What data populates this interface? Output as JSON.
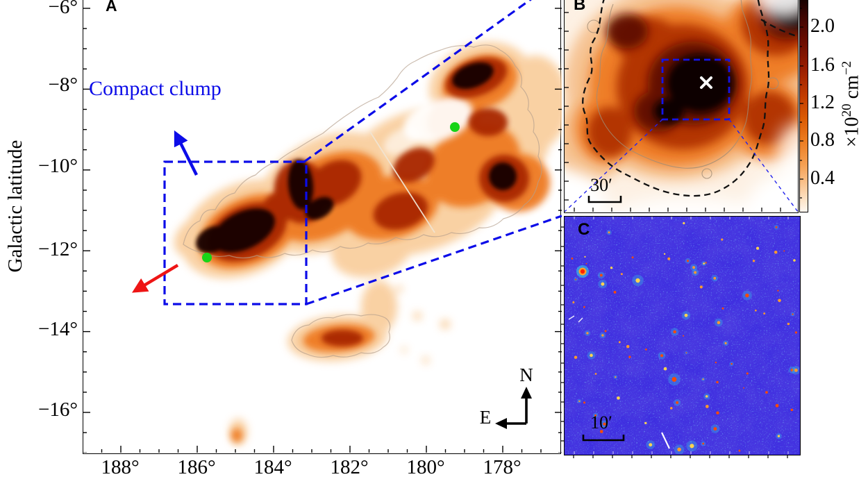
{
  "panel_a": {
    "label": "A",
    "y_axis_label": "Galactic latitude",
    "x_tick_labels": [
      "188°",
      "186°",
      "184°",
      "182°",
      "180°",
      "178°"
    ],
    "y_tick_labels": [
      "−6°",
      "−8°",
      "−10°",
      "−12°",
      "−14°",
      "−16°"
    ],
    "annotation_compact_clump": "Compact clump",
    "compass_north": "N",
    "compass_east": "E"
  },
  "panel_b": {
    "label": "B",
    "scalebar_label": "30′",
    "colorbar_tick_labels": [
      "2.0",
      "1.6",
      "1.2",
      "0.8",
      "0.4"
    ],
    "colorbar_unit_prefix": "×10",
    "colorbar_unit_exponent": "20",
    "colorbar_unit_base": " cm",
    "colorbar_unit_base_exponent": "−2"
  },
  "panel_c": {
    "label": "C",
    "scalebar_label": "10′"
  },
  "colors": {
    "annotation_blue": "#0c0ce8",
    "arrow_red": "#ee1515",
    "marker_green": "#17d417",
    "panel_c_background": "#3a2ae0",
    "colormap": "white → orange → dark red → black"
  },
  "chart_data": [
    {
      "panel": "A",
      "type": "heatmap",
      "description": "Wide-field column-density style map of an extended cloud complex (white-orange-black colour scale) with thin grey boundary contours",
      "ylabel": "Galactic latitude",
      "x_tick_labels": [
        "188°",
        "186°",
        "184°",
        "182°",
        "180°",
        "178°"
      ],
      "y_tick_labels": [
        "−6°",
        "−8°",
        "−10°",
        "−12°",
        "−14°",
        "−16°"
      ],
      "x_axis_range_deg": [
        189.0,
        176.5
      ],
      "y_axis_range_deg": [
        -5.8,
        -17.0
      ],
      "zoom_box_lon_deg": [
        186.9,
        183.1
      ],
      "zoom_box_lat_deg": [
        -9.8,
        -13.35
      ],
      "green_markers_lon_lat_deg": [
        [
          185.7,
          -12.2
        ],
        [
          179.3,
          -9.0
        ]
      ],
      "annotations": [
        "Compact clump (blue text with blue arrow pointing up-left)",
        "red arrow pointing down-left",
        "N up / E left compass",
        "blue dashed box linked by dashed lines to panels B and C"
      ]
    },
    {
      "panel": "B",
      "type": "heatmap",
      "description": "Zoom-in of the compact clump; black dashed boundary contour, thin solid inner contours, blue dashed sub-field box with white × at the column-density peak",
      "colorbar_ticks": [
        2.0,
        1.6,
        1.2,
        0.8,
        0.4
      ],
      "colorbar_unit": "×10^20 cm^−2",
      "scalebar": "30′",
      "legend_position": "colorbar right"
    },
    {
      "panel": "C",
      "type": "image",
      "description": "Blue colour-scale optical/IR survey image of the sub-field with scattered red-orange point sources and a short white streak",
      "scalebar": "10′"
    }
  ]
}
